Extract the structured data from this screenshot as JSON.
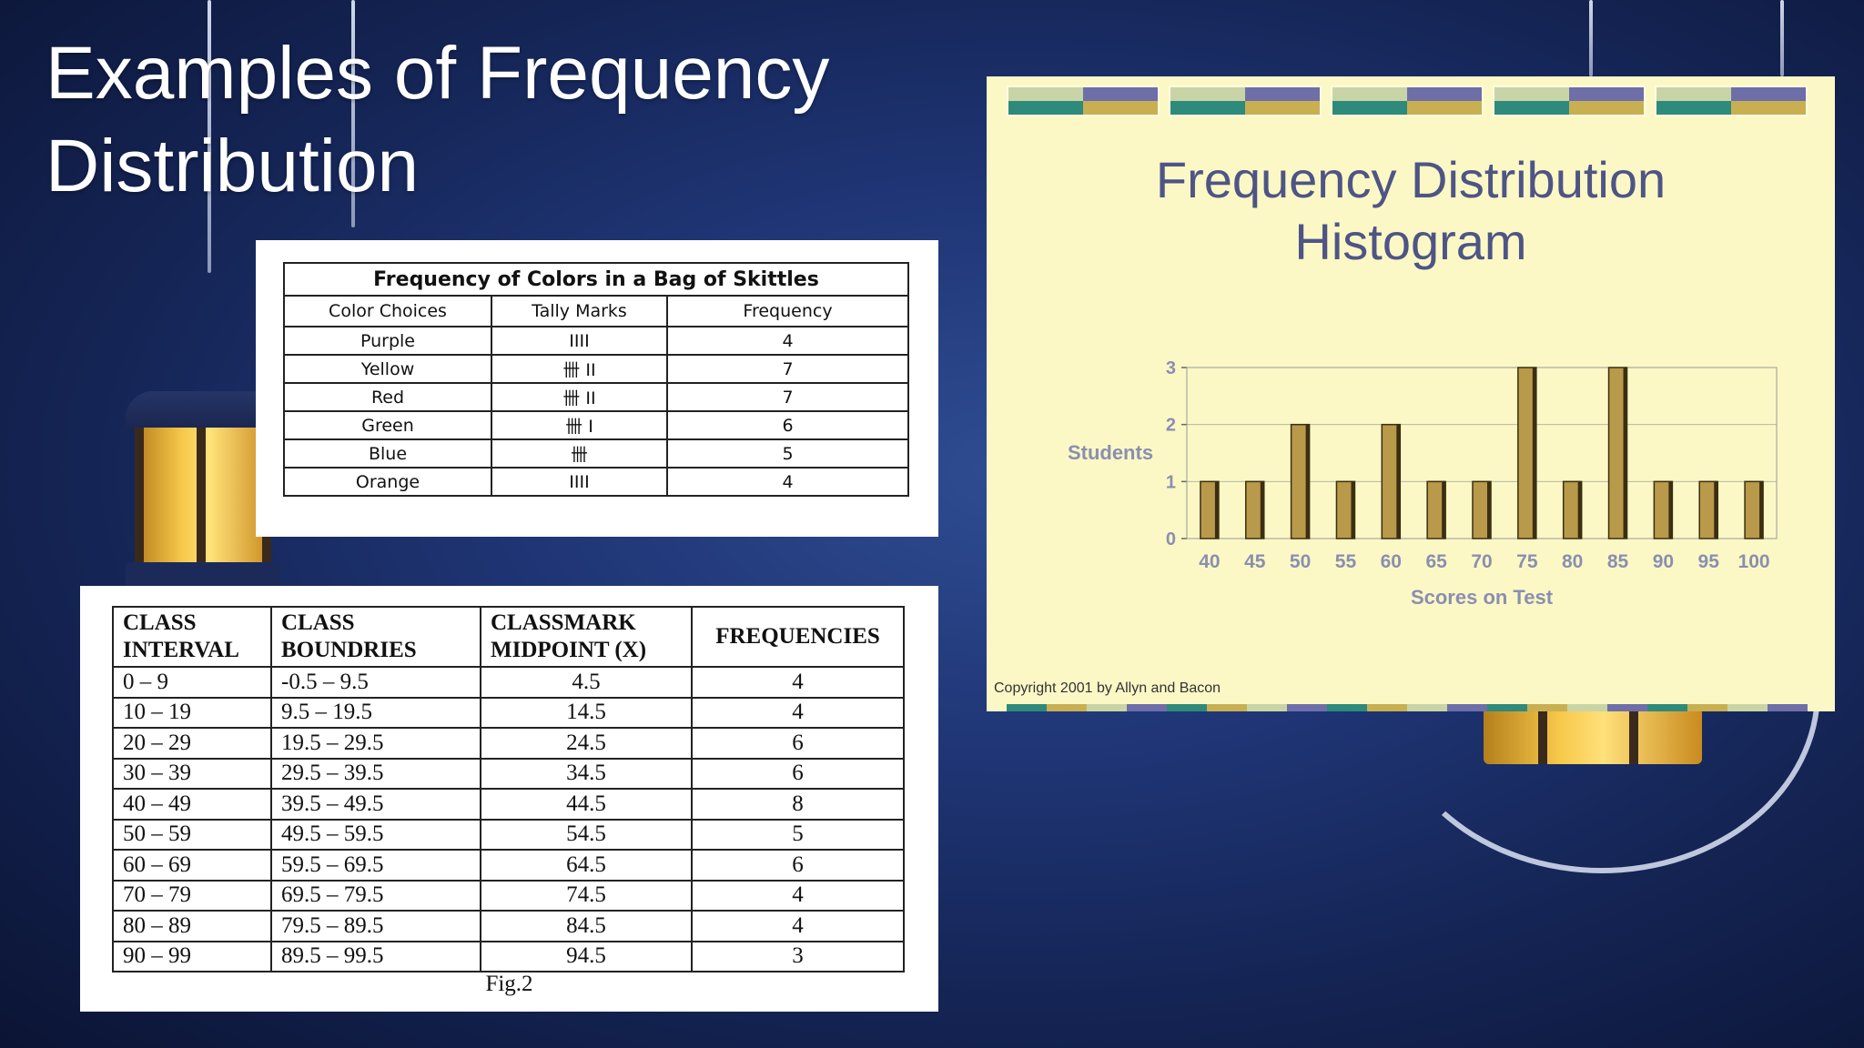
{
  "slide": {
    "title": "Examples of Frequency Distribution"
  },
  "skittles_table": {
    "caption": "Frequency of Colors in a Bag of Skittles",
    "headers": [
      "Color Choices",
      "Tally Marks",
      "Frequency"
    ],
    "rows": [
      {
        "color": "Purple",
        "tally": "IIII",
        "frequency": "4"
      },
      {
        "color": "Yellow",
        "tally": "卌 II",
        "frequency": "7"
      },
      {
        "color": "Red",
        "tally": "卌 II",
        "frequency": "7"
      },
      {
        "color": "Green",
        "tally": "卌 I",
        "frequency": "6"
      },
      {
        "color": "Blue",
        "tally": "卌",
        "frequency": "5"
      },
      {
        "color": "Orange",
        "tally": "IIII",
        "frequency": "4"
      }
    ]
  },
  "class_table": {
    "headers": [
      "CLASS INTERVAL",
      "CLASS BOUNDRIES",
      "CLASSMARK MIDPOINT (X)",
      "FREQUENCIES"
    ],
    "rows": [
      {
        "interval": "0 – 9",
        "boundaries": "-0.5 – 9.5",
        "midpoint": "4.5",
        "frequency": "4"
      },
      {
        "interval": "10 – 19",
        "boundaries": "9.5 – 19.5",
        "midpoint": "14.5",
        "frequency": "4"
      },
      {
        "interval": "20 – 29",
        "boundaries": "19.5 – 29.5",
        "midpoint": "24.5",
        "frequency": "6"
      },
      {
        "interval": "30 – 39",
        "boundaries": "29.5 – 39.5",
        "midpoint": "34.5",
        "frequency": "6"
      },
      {
        "interval": "40 – 49",
        "boundaries": "39.5 – 49.5",
        "midpoint": "44.5",
        "frequency": "8"
      },
      {
        "interval": "50 – 59",
        "boundaries": "49.5 – 59.5",
        "midpoint": "54.5",
        "frequency": "5"
      },
      {
        "interval": "60 – 69",
        "boundaries": "59.5 – 69.5",
        "midpoint": "64.5",
        "frequency": "6"
      },
      {
        "interval": "70 – 79",
        "boundaries": "69.5 – 79.5",
        "midpoint": "74.5",
        "frequency": "4"
      },
      {
        "interval": "80 – 89",
        "boundaries": "79.5 – 89.5",
        "midpoint": "84.5",
        "frequency": "4"
      },
      {
        "interval": "90 – 99",
        "boundaries": "89.5 – 99.5",
        "midpoint": "94.5",
        "frequency": "3"
      }
    ],
    "figure_caption": "Fig.2"
  },
  "histogram_panel": {
    "copyright": "Copyright 2001 by Allyn and Bacon"
  },
  "chart_data": {
    "type": "bar",
    "title": "Frequency Distribution Histogram",
    "title_lines": [
      "Frequency Distribution",
      "Histogram"
    ],
    "xlabel": "Scores on Test",
    "ylabel": "Students",
    "categories": [
      "40",
      "45",
      "50",
      "55",
      "60",
      "65",
      "70",
      "75",
      "80",
      "85",
      "90",
      "95",
      "100"
    ],
    "values": [
      1,
      1,
      2,
      1,
      2,
      1,
      1,
      3,
      1,
      3,
      1,
      1,
      1
    ],
    "ylim": [
      0,
      3
    ],
    "yticks": [
      0,
      1,
      2,
      3
    ],
    "grid": true,
    "bar_color": "#b89a4a",
    "axis_text_color": "#8a8fb0"
  }
}
